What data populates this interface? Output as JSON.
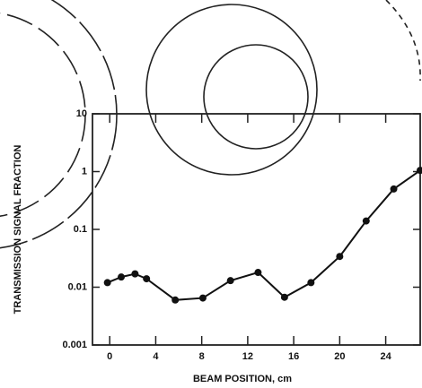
{
  "chart_data": {
    "type": "line",
    "xlabel": "BEAM POSITION, cm",
    "ylabel": "TRANSMISSION SIGNAL FRACTION",
    "x": [
      -0.2,
      1,
      2.2,
      3.2,
      5.7,
      8.1,
      10.5,
      12.9,
      15.2,
      17.5,
      20,
      22.3,
      24.7,
      27
    ],
    "series": [
      {
        "color": "#111111",
        "values": [
          0.012,
          0.015,
          0.017,
          0.014,
          0.006,
          0.0065,
          0.013,
          0.018,
          0.0067,
          0.012,
          0.034,
          0.14,
          0.5,
          1.05
        ]
      }
    ],
    "xlim": [
      -1.5,
      27
    ],
    "xticks": [
      0,
      4,
      8,
      12,
      16,
      20,
      24
    ],
    "ylim": [
      0.001,
      10
    ],
    "yticks": [
      0.001,
      0.01,
      0.1,
      1,
      10
    ],
    "yscale": "log"
  }
}
